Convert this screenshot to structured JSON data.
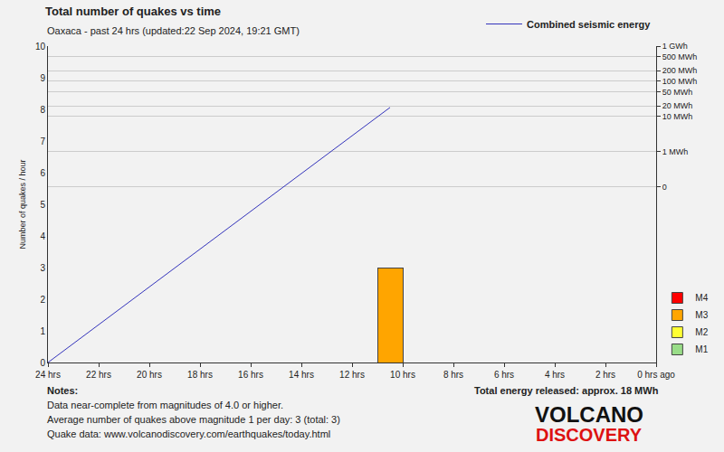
{
  "chart_data": [
    {
      "type": "histogram",
      "title": "Total number of quakes vs time",
      "subtitle": "Oaxaca - past 24 hrs (updated:22 Sep 2024, 19:21 GMT)",
      "y_label": "Number of quakes / hour",
      "bins": [
        24,
        23,
        22,
        21,
        20,
        19,
        18,
        17,
        16,
        15,
        14,
        13,
        12,
        11,
        10,
        9,
        8,
        7,
        6,
        5,
        4,
        3,
        2,
        1,
        0
      ],
      "series": [
        {
          "name": "M1",
          "color": "#99dd88",
          "values": [
            0,
            0,
            0,
            0,
            0,
            0,
            0,
            0,
            0,
            0,
            0,
            0,
            0,
            0,
            0,
            0,
            0,
            0,
            0,
            0,
            0,
            0,
            0,
            0
          ]
        },
        {
          "name": "M2",
          "color": "#ffff33",
          "values": [
            0,
            0,
            0,
            0,
            0,
            0,
            0,
            0,
            0,
            0,
            0,
            0,
            0,
            0,
            0,
            0,
            0,
            0,
            0,
            0,
            0,
            0,
            0,
            0
          ]
        },
        {
          "name": "M3",
          "color": "#ffa500",
          "values": [
            0,
            0,
            0,
            0,
            0,
            0,
            0,
            0,
            0,
            0,
            0,
            0,
            0,
            3,
            0,
            0,
            0,
            0,
            0,
            0,
            0,
            0,
            0,
            0
          ]
        },
        {
          "name": "M4",
          "color": "#ff0000",
          "values": [
            0,
            0,
            0,
            0,
            0,
            0,
            0,
            0,
            0,
            0,
            0,
            0,
            0,
            0,
            0,
            0,
            0,
            0,
            0,
            0,
            0,
            0,
            0,
            0
          ]
        }
      ],
      "stacked": true,
      "xlim": [
        24,
        0
      ],
      "xticks": [
        {
          "value": 24,
          "label": "24 hrs"
        },
        {
          "value": 22,
          "label": "22 hrs"
        },
        {
          "value": 20,
          "label": "20 hrs"
        },
        {
          "value": 18,
          "label": "18 hrs"
        },
        {
          "value": 16,
          "label": "16 hrs"
        },
        {
          "value": 14,
          "label": "14 hrs"
        },
        {
          "value": 12,
          "label": "12 hrs"
        },
        {
          "value": 10,
          "label": "10 hrs"
        },
        {
          "value": 8,
          "label": "8 hrs"
        },
        {
          "value": 6,
          "label": "6 hrs"
        },
        {
          "value": 4,
          "label": "4 hrs"
        },
        {
          "value": 2,
          "label": "2 hrs"
        },
        {
          "value": 0,
          "label": "0 hrs ago"
        }
      ],
      "ylim": [
        0,
        10
      ],
      "yticks": [
        0,
        1,
        2,
        3,
        4,
        5,
        6,
        7,
        8,
        9,
        10
      ],
      "grid": false,
      "legend": "bottom right",
      "annotations": [
        "Notes:",
        "Data near-complete from magnitudes of 4.0 or higher.",
        "Average number of quakes above magnitude 1 per day: 3 (total: 3)",
        "Quake data: www.volcanodiscovery.com/earthquakes/today.html",
        "VOLCANO",
        "DISCOVERY"
      ]
    },
    {
      "type": "line",
      "x": [
        24,
        10.5
      ],
      "series": [
        {
          "name": "Combined seismic energy",
          "color": "#3333bb",
          "values": [
            1e-06,
            18
          ]
        }
      ],
      "log": "y",
      "xlim": [
        24,
        0
      ],
      "ylim": [
        1e-06,
        1000
      ],
      "yticks": [
        {
          "value": 0.1,
          "label": "0"
        },
        {
          "value": 1,
          "label": "1 MWh"
        },
        {
          "value": 10,
          "label": "10 MWh"
        },
        {
          "value": 20,
          "label": "20 MWh"
        },
        {
          "value": 50,
          "label": "50 MWh"
        },
        {
          "value": 100,
          "label": "100 MWh"
        },
        {
          "value": 200,
          "label": "200 MWh"
        },
        {
          "value": 500,
          "label": "500 MWh"
        },
        {
          "value": 1000,
          "label": "1 GWh"
        }
      ],
      "grid": true,
      "legend": "top right",
      "annotations": [
        "Total energy released: approx. 18 MWh"
      ]
    }
  ]
}
